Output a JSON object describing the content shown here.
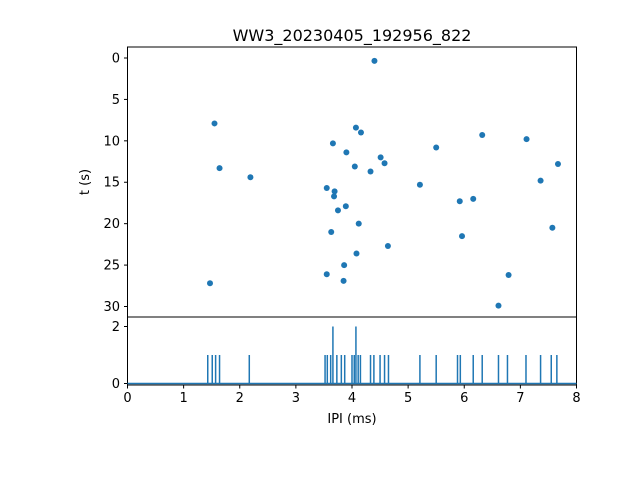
{
  "window": {
    "background": "#ffffff",
    "figure_size": "640x480"
  },
  "chart_data": [
    {
      "type": "scatter",
      "title": "WW3_20230405_192956_822",
      "xlabel": "",
      "ylabel": "t (s)",
      "xlim": [
        0,
        8
      ],
      "ylim": [
        0,
        30
      ],
      "y_axis_inverted": true,
      "grid": false,
      "legend": "none",
      "xticks": [
        0,
        1,
        2,
        3,
        4,
        5,
        6,
        7,
        8
      ],
      "yticks": [
        0,
        5,
        10,
        15,
        20,
        25,
        30
      ],
      "marker_color": "#1f77b4",
      "points": [
        [
          1.47,
          27.2
        ],
        [
          1.55,
          7.9
        ],
        [
          1.64,
          13.3
        ],
        [
          2.19,
          14.4
        ],
        [
          3.55,
          15.7
        ],
        [
          3.55,
          26.1
        ],
        [
          3.63,
          21.0
        ],
        [
          3.66,
          10.3
        ],
        [
          3.68,
          16.7
        ],
        [
          3.69,
          16.1
        ],
        [
          3.75,
          18.4
        ],
        [
          3.85,
          26.9
        ],
        [
          3.86,
          25.0
        ],
        [
          3.89,
          17.9
        ],
        [
          3.9,
          11.4
        ],
        [
          4.05,
          13.1
        ],
        [
          4.07,
          8.4
        ],
        [
          4.08,
          23.6
        ],
        [
          4.12,
          20.0
        ],
        [
          4.16,
          9.0
        ],
        [
          4.33,
          13.7
        ],
        [
          4.4,
          0.35
        ],
        [
          4.51,
          12.0
        ],
        [
          4.58,
          12.7
        ],
        [
          4.64,
          22.7
        ],
        [
          5.21,
          15.3
        ],
        [
          5.5,
          10.8
        ],
        [
          5.92,
          17.3
        ],
        [
          5.96,
          21.5
        ],
        [
          6.16,
          17.0
        ],
        [
          6.32,
          9.3
        ],
        [
          6.61,
          29.9
        ],
        [
          6.79,
          26.2
        ],
        [
          7.11,
          9.8
        ],
        [
          7.36,
          14.8
        ],
        [
          7.57,
          20.5
        ],
        [
          7.67,
          12.8
        ]
      ]
    },
    {
      "type": "bar",
      "subtype": "event-count-stems",
      "title": "",
      "xlabel": "IPI (ms)",
      "ylabel": "",
      "xlim": [
        0,
        8
      ],
      "ylim": [
        0,
        2.35
      ],
      "grid": false,
      "xticks": [
        0,
        1,
        2,
        3,
        4,
        5,
        6,
        7,
        8
      ],
      "yticks": [
        0,
        2
      ],
      "color": "#1f77b4",
      "has_baseline": true,
      "lines": [
        [
          1.43,
          1
        ],
        [
          1.51,
          1
        ],
        [
          1.57,
          1
        ],
        [
          1.64,
          1
        ],
        [
          2.17,
          1
        ],
        [
          3.52,
          1
        ],
        [
          3.56,
          1
        ],
        [
          3.62,
          1
        ],
        [
          3.66,
          2
        ],
        [
          3.73,
          1
        ],
        [
          3.81,
          1
        ],
        [
          3.87,
          1
        ],
        [
          4.0,
          1
        ],
        [
          4.04,
          1
        ],
        [
          4.07,
          2
        ],
        [
          4.11,
          1
        ],
        [
          4.15,
          1
        ],
        [
          4.33,
          1
        ],
        [
          4.39,
          1
        ],
        [
          4.5,
          1
        ],
        [
          4.58,
          1
        ],
        [
          4.65,
          1
        ],
        [
          5.21,
          1
        ],
        [
          5.5,
          1
        ],
        [
          5.88,
          1
        ],
        [
          5.93,
          1
        ],
        [
          6.16,
          1
        ],
        [
          6.32,
          1
        ],
        [
          6.61,
          1
        ],
        [
          6.77,
          1
        ],
        [
          7.1,
          1
        ],
        [
          7.36,
          1
        ],
        [
          7.55,
          1
        ],
        [
          7.65,
          1
        ]
      ]
    }
  ]
}
